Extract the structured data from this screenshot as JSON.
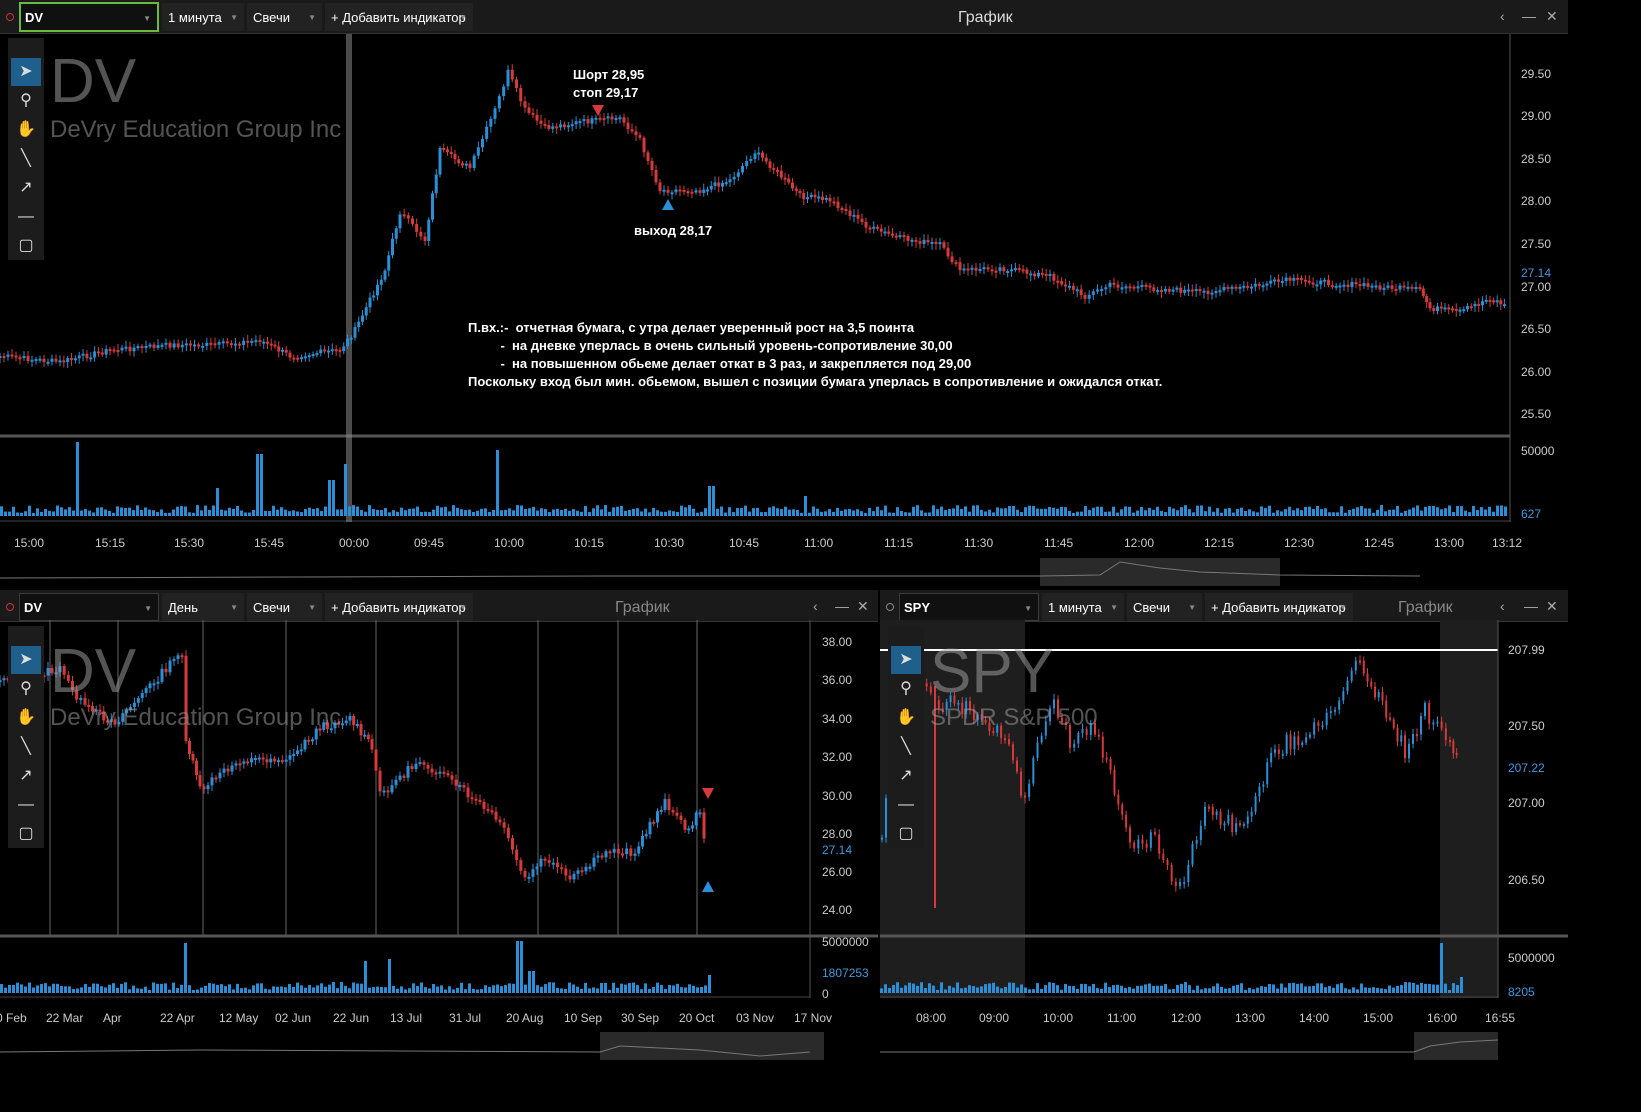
{
  "colors": {
    "up": "#2a8fd6",
    "down": "#d63a3a",
    "bg": "#000000",
    "toolbar": "#1a1a1a",
    "accent_green": "#6cba3c",
    "axis": "#cccccc"
  },
  "top": {
    "symbol": "DV",
    "interval": "1 минута",
    "style": "Свечи",
    "add_indicator": "+ Добавить индикатор",
    "title": "График",
    "watermark_symbol": "DV",
    "watermark_name": "DeVry Education Group Inc",
    "price_ticks": [
      "29.50",
      "29.00",
      "28.50",
      "28.00",
      "27.50",
      "27.00",
      "26.50",
      "26.00",
      "25.50"
    ],
    "current_price": "27.14",
    "volume_ticks": [
      "50000",
      "627"
    ],
    "time_ticks": [
      "15:00",
      "15:15",
      "15:30",
      "15:45",
      "00:00",
      "09:45",
      "10:00",
      "10:15",
      "10:30",
      "10:45",
      "11:00",
      "11:15",
      "11:30",
      "11:45",
      "12:00",
      "12:15",
      "12:30",
      "12:45",
      "13:00",
      "13:12"
    ],
    "annotation_short": "Шорт 28,95",
    "annotation_stop": "стоп 29,17",
    "annotation_exit": "выход 28,17",
    "notes": [
      "П.вх.:-  отчетная бумага, с утра делает уверенный рост на 3,5 поинта",
      "         -  на дневке уперлась в очень сильный уровень-сопротивление 30,00",
      "         -  на повышенном обьеме делает откат в 3 раз, и закрепляется под 29,00",
      "Поскольку вход был мин. обьемом, вышел с позиции бумага уперлась в сопротивление и ожидался откат."
    ]
  },
  "bl": {
    "symbol": "DV",
    "interval": "День",
    "style": "Свечи",
    "add_indicator": "+ Добавить индикатор",
    "title": "График",
    "watermark_symbol": "DV",
    "watermark_name": "DeVry Education Group Inc",
    "price_ticks": [
      "38.00",
      "36.00",
      "34.00",
      "32.00",
      "30.00",
      "28.00",
      "26.00",
      "24.00"
    ],
    "current_price": "27.14",
    "volume_ticks": [
      "5000000",
      "1807253",
      "0"
    ],
    "time_ticks": [
      "0 Feb",
      "22 Mar",
      "Apr",
      "22 Apr",
      "12 May",
      "02 Jun",
      "22 Jun",
      "13 Jul",
      "31 Jul",
      "20 Aug",
      "10 Sep",
      "30 Sep",
      "20 Oct",
      "03 Nov",
      "17 Nov"
    ]
  },
  "br": {
    "symbol": "SPY",
    "interval": "1 минута",
    "style": "Свечи",
    "add_indicator": "+ Добавить индикатор",
    "title": "График",
    "watermark_symbol": "SPY",
    "watermark_name": "SPDR S&P 500",
    "price_ticks": [
      "207.50",
      "207.00",
      "206.50"
    ],
    "level_price": "207.99",
    "current_price": "207.22",
    "volume_ticks": [
      "5000000",
      "8205"
    ],
    "time_ticks": [
      "08:00",
      "09:00",
      "10:00",
      "11:00",
      "12:00",
      "13:00",
      "14:00",
      "15:00",
      "16:00",
      "16:55"
    ]
  },
  "icons": [
    "pointer-icon",
    "zoom-icon",
    "hand-icon",
    "line-icon",
    "arrow-icon",
    "hline-icon",
    "rect-icon"
  ]
}
